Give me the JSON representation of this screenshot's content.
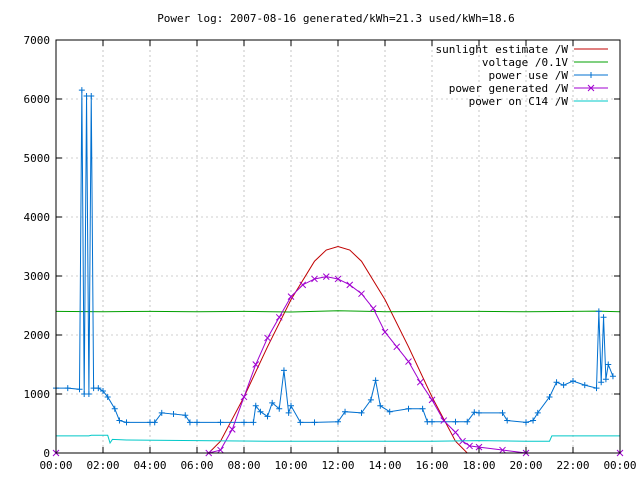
{
  "chart_data": {
    "type": "line",
    "title": "Power log: 2007-08-16 generated/kWh=21.3 used/kWh=18.6",
    "xlabel": "",
    "ylabel": "",
    "xlim": [
      0,
      24
    ],
    "ylim": [
      0,
      7000
    ],
    "grid": true,
    "legend_position": "top-right",
    "x_ticks": [
      {
        "value": 0,
        "label": "00:00"
      },
      {
        "value": 2,
        "label": "02:00"
      },
      {
        "value": 4,
        "label": "04:00"
      },
      {
        "value": 6,
        "label": "06:00"
      },
      {
        "value": 8,
        "label": "08:00"
      },
      {
        "value": 10,
        "label": "10:00"
      },
      {
        "value": 12,
        "label": "12:00"
      },
      {
        "value": 14,
        "label": "14:00"
      },
      {
        "value": 16,
        "label": "16:00"
      },
      {
        "value": 18,
        "label": "18:00"
      },
      {
        "value": 20,
        "label": "20:00"
      },
      {
        "value": 22,
        "label": "22:00"
      },
      {
        "value": 24,
        "label": "00:00"
      }
    ],
    "y_ticks": [
      {
        "value": 0,
        "label": "0"
      },
      {
        "value": 1000,
        "label": "1000"
      },
      {
        "value": 2000,
        "label": "2000"
      },
      {
        "value": 3000,
        "label": "3000"
      },
      {
        "value": 4000,
        "label": "4000"
      },
      {
        "value": 5000,
        "label": "5000"
      },
      {
        "value": 6000,
        "label": "6000"
      },
      {
        "value": 7000,
        "label": "7000"
      }
    ],
    "series": [
      {
        "name": "sunlight estimate /W",
        "color": "#c00000",
        "marker": "none",
        "points": [
          [
            0,
            0
          ],
          [
            6.5,
            0
          ],
          [
            7,
            200
          ],
          [
            8,
            950
          ],
          [
            9,
            1800
          ],
          [
            10,
            2600
          ],
          [
            11,
            3250
          ],
          [
            11.5,
            3440
          ],
          [
            12,
            3500
          ],
          [
            12.5,
            3440
          ],
          [
            13,
            3250
          ],
          [
            14,
            2600
          ],
          [
            15,
            1800
          ],
          [
            16,
            950
          ],
          [
            17,
            200
          ],
          [
            17.5,
            0
          ],
          [
            24,
            0
          ]
        ]
      },
      {
        "name": "voltage /0.1V",
        "color": "#00a000",
        "marker": "none",
        "points": [
          [
            0,
            2400
          ],
          [
            2,
            2395
          ],
          [
            4,
            2400
          ],
          [
            6,
            2395
          ],
          [
            8,
            2400
          ],
          [
            10,
            2390
          ],
          [
            12,
            2410
          ],
          [
            14,
            2395
          ],
          [
            16,
            2400
          ],
          [
            18,
            2400
          ],
          [
            20,
            2395
          ],
          [
            22,
            2400
          ],
          [
            23,
            2405
          ],
          [
            24,
            2395
          ]
        ]
      },
      {
        "name": "power use /W",
        "color": "#0070d0",
        "marker": "plus",
        "points": [
          [
            0,
            1100
          ],
          [
            0.5,
            1100
          ],
          [
            1,
            1080
          ],
          [
            1.1,
            6150
          ],
          [
            1.2,
            1000
          ],
          [
            1.3,
            6050
          ],
          [
            1.4,
            1000
          ],
          [
            1.5,
            6050
          ],
          [
            1.6,
            1100
          ],
          [
            1.8,
            1100
          ],
          [
            2,
            1050
          ],
          [
            2.2,
            950
          ],
          [
            2.5,
            750
          ],
          [
            2.7,
            550
          ],
          [
            3,
            520
          ],
          [
            4,
            520
          ],
          [
            4.2,
            520
          ],
          [
            4.5,
            680
          ],
          [
            5,
            660
          ],
          [
            5.5,
            640
          ],
          [
            5.7,
            520
          ],
          [
            6,
            520
          ],
          [
            7,
            520
          ],
          [
            8,
            520
          ],
          [
            8.4,
            520
          ],
          [
            8.5,
            800
          ],
          [
            8.7,
            700
          ],
          [
            9,
            620
          ],
          [
            9.2,
            850
          ],
          [
            9.5,
            750
          ],
          [
            9.7,
            1400
          ],
          [
            9.9,
            680
          ],
          [
            10,
            800
          ],
          [
            10.4,
            520
          ],
          [
            11,
            520
          ],
          [
            12,
            530
          ],
          [
            12.3,
            700
          ],
          [
            13,
            680
          ],
          [
            13.4,
            900
          ],
          [
            13.6,
            1230
          ],
          [
            13.8,
            800
          ],
          [
            14.2,
            700
          ],
          [
            15,
            750
          ],
          [
            15.6,
            750
          ],
          [
            15.8,
            530
          ],
          [
            16,
            530
          ],
          [
            17,
            530
          ],
          [
            17.5,
            530
          ],
          [
            17.8,
            690
          ],
          [
            18,
            680
          ],
          [
            19,
            680
          ],
          [
            19.2,
            550
          ],
          [
            20,
            520
          ],
          [
            20.3,
            550
          ],
          [
            20.5,
            680
          ],
          [
            21,
            950
          ],
          [
            21.3,
            1200
          ],
          [
            21.6,
            1150
          ],
          [
            22,
            1220
          ],
          [
            22.5,
            1150
          ],
          [
            23,
            1100
          ],
          [
            23.1,
            2400
          ],
          [
            23.2,
            1200
          ],
          [
            23.3,
            2300
          ],
          [
            23.4,
            1250
          ],
          [
            23.5,
            1500
          ],
          [
            23.7,
            1300
          ]
        ]
      },
      {
        "name": "power generated /W",
        "color": "#a000d0",
        "marker": "cross",
        "points": [
          [
            0,
            0
          ],
          [
            6.5,
            0
          ],
          [
            7,
            50
          ],
          [
            7.5,
            400
          ],
          [
            8,
            950
          ],
          [
            8.5,
            1500
          ],
          [
            9,
            1950
          ],
          [
            9.5,
            2300
          ],
          [
            10,
            2650
          ],
          [
            10.5,
            2850
          ],
          [
            11,
            2950
          ],
          [
            11.5,
            2990
          ],
          [
            12,
            2950
          ],
          [
            12.5,
            2850
          ],
          [
            13,
            2700
          ],
          [
            13.5,
            2450
          ],
          [
            14,
            2050
          ],
          [
            14.5,
            1800
          ],
          [
            15,
            1550
          ],
          [
            15.5,
            1200
          ],
          [
            16,
            900
          ],
          [
            16.5,
            550
          ],
          [
            17,
            350
          ],
          [
            17.3,
            200
          ],
          [
            17.6,
            120
          ],
          [
            18,
            100
          ],
          [
            19,
            50
          ],
          [
            20,
            0
          ],
          [
            24,
            0
          ]
        ]
      },
      {
        "name": "power on C14 /W",
        "color": "#00c8c8",
        "marker": "none",
        "points": [
          [
            0,
            290
          ],
          [
            1.4,
            290
          ],
          [
            1.5,
            300
          ],
          [
            2.2,
            300
          ],
          [
            2.3,
            170
          ],
          [
            2.4,
            230
          ],
          [
            3,
            220
          ],
          [
            6,
            210
          ],
          [
            9,
            200
          ],
          [
            12,
            200
          ],
          [
            13,
            200
          ],
          [
            16,
            200
          ],
          [
            18,
            210
          ],
          [
            20,
            200
          ],
          [
            21,
            200
          ],
          [
            21.1,
            290
          ],
          [
            24,
            290
          ]
        ]
      }
    ]
  }
}
